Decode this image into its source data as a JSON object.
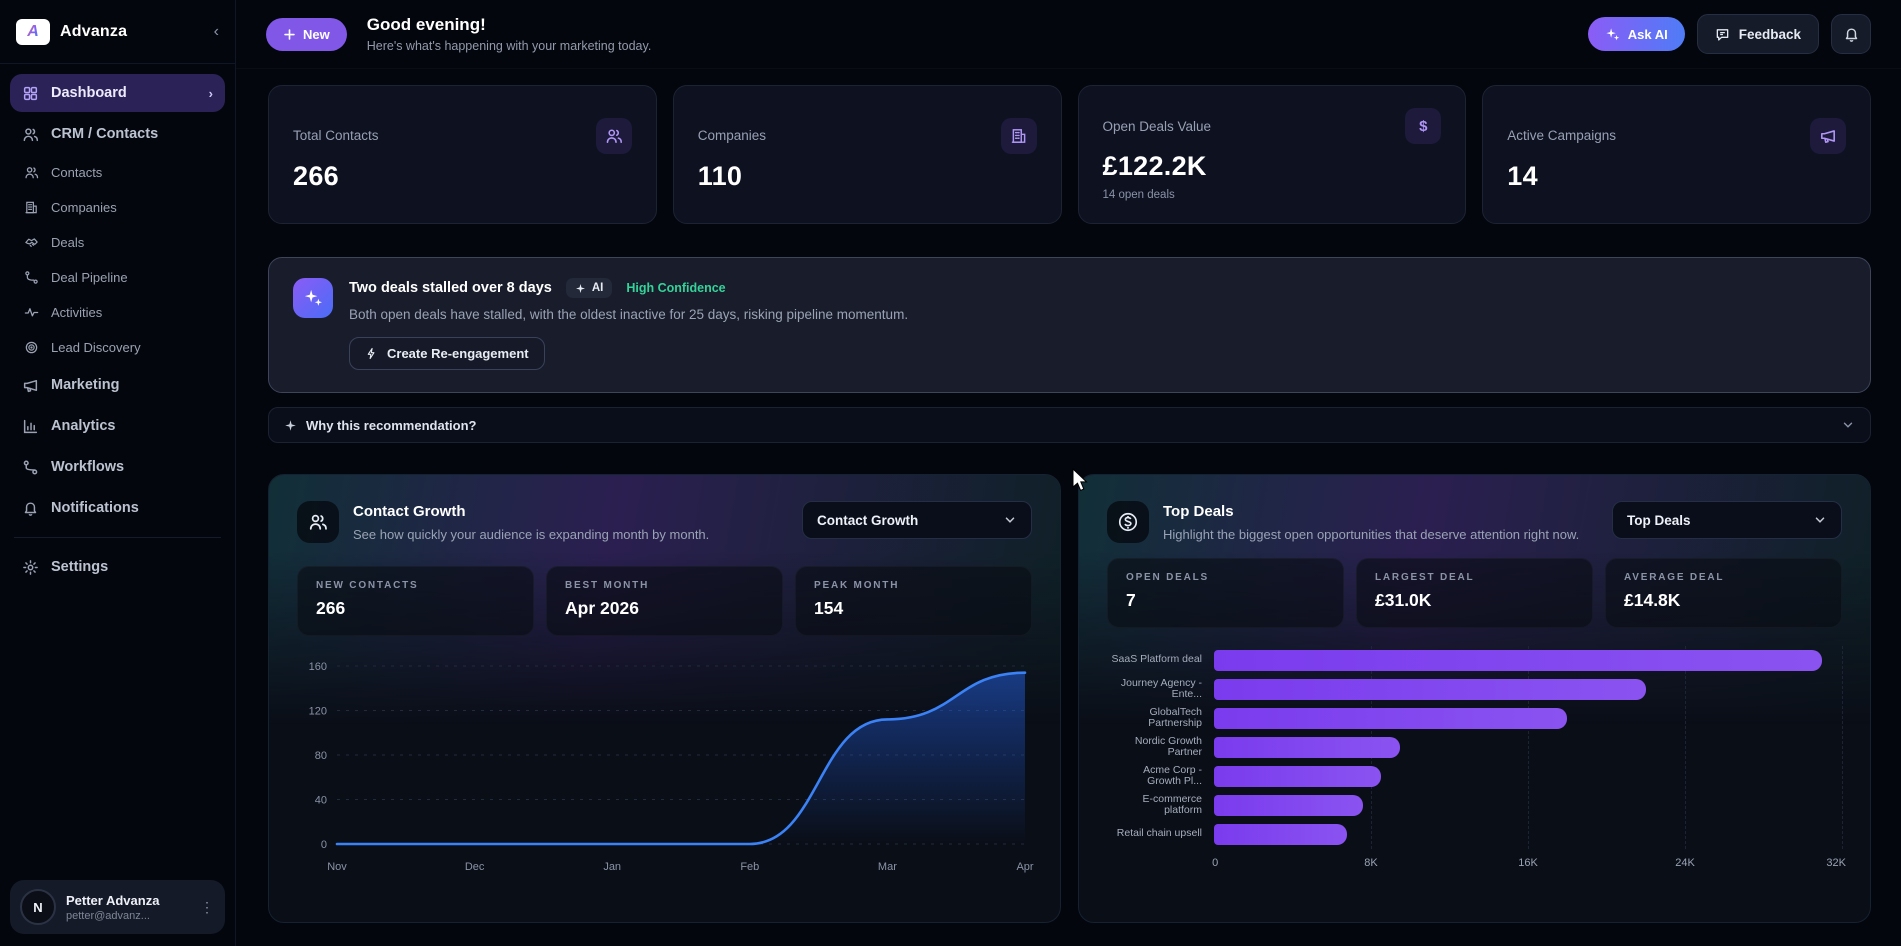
{
  "sidebar": {
    "brand": "Advanza",
    "nav": [
      {
        "label": "Dashboard"
      },
      {
        "label": "CRM / Contacts"
      },
      {
        "label": "Contacts"
      },
      {
        "label": "Companies"
      },
      {
        "label": "Deals"
      },
      {
        "label": "Deal Pipeline"
      },
      {
        "label": "Activities"
      },
      {
        "label": "Lead Discovery"
      },
      {
        "label": "Marketing"
      },
      {
        "label": "Analytics"
      },
      {
        "label": "Workflows"
      },
      {
        "label": "Notifications"
      },
      {
        "label": "Settings"
      }
    ],
    "user": {
      "name": "Petter Advanza",
      "email": "petter@advanz...",
      "initial": "N"
    }
  },
  "header": {
    "new_label": "New",
    "greeting": "Good evening!",
    "subtitle": "Here's what's happening with your marketing today.",
    "ask_ai_label": "Ask AI",
    "feedback_label": "Feedback"
  },
  "stat_cards": [
    {
      "label": "Total Contacts",
      "value": "266",
      "sub": "",
      "icon": "users-icon"
    },
    {
      "label": "Companies",
      "value": "110",
      "sub": "",
      "icon": "building-icon"
    },
    {
      "label": "Open Deals Value",
      "value": "£122.2K",
      "sub": "14 open deals",
      "icon": "dollar-icon"
    },
    {
      "label": "Active Campaigns",
      "value": "14",
      "sub": "",
      "icon": "megaphone-icon"
    }
  ],
  "ai_insight": {
    "title": "Two deals stalled over 8 days",
    "badge": "AI",
    "confidence": "High Confidence",
    "description": "Both open deals have stalled, with the oldest inactive for 25 days, risking pipeline momentum.",
    "action_label": "Create Re-engagement"
  },
  "why_bar": {
    "label": "Why this recommendation?"
  },
  "contact_growth": {
    "title": "Contact Growth",
    "subtitle": "See how quickly your audience is expanding month by month.",
    "select_value": "Contact Growth",
    "stats": [
      {
        "label": "NEW CONTACTS",
        "value": "266"
      },
      {
        "label": "BEST MONTH",
        "value": "Apr 2026"
      },
      {
        "label": "PEAK MONTH",
        "value": "154"
      }
    ]
  },
  "top_deals": {
    "title": "Top Deals",
    "subtitle": "Highlight the biggest open opportunities that deserve attention right now.",
    "select_value": "Top Deals",
    "stats": [
      {
        "label": "OPEN DEALS",
        "value": "7"
      },
      {
        "label": "LARGEST DEAL",
        "value": "£31.0K"
      },
      {
        "label": "AVERAGE DEAL",
        "value": "£14.8K"
      }
    ]
  },
  "chart_data": [
    {
      "type": "line",
      "title": "Contact Growth",
      "x": [
        "Nov",
        "Dec",
        "Jan",
        "Feb",
        "Mar",
        "Apr"
      ],
      "values": [
        0,
        0,
        0,
        0,
        112,
        154
      ],
      "ylim": [
        0,
        160
      ],
      "yticks": [
        0,
        40,
        80,
        120,
        160
      ],
      "line_color": "#3b82f6",
      "fill": "blue-gradient-area",
      "grid": "dashed-horizontal"
    },
    {
      "type": "bar",
      "orientation": "horizontal",
      "title": "Top Deals",
      "categories": [
        "SaaS Platform deal",
        "Journey Agency - Ente...",
        "GlobalTech Partnership",
        "Nordic Growth Partner",
        "Acme Corp - Growth Pl...",
        "E-commerce platform",
        "Retail chain upsell"
      ],
      "values": [
        31000,
        22000,
        18000,
        9500,
        8500,
        7600,
        6800
      ],
      "xlim": [
        0,
        32000
      ],
      "xticks": [
        "0",
        "8K",
        "16K",
        "24K",
        "32K"
      ],
      "bar_color": "#7c3aed",
      "grid": "dashed-vertical"
    }
  ],
  "colors": {
    "background": "#04060d",
    "card": "#0d1120",
    "accent_purple": "#8b5cf6",
    "accent_blue": "#3b82f6",
    "confidence_green": "#34d399"
  }
}
